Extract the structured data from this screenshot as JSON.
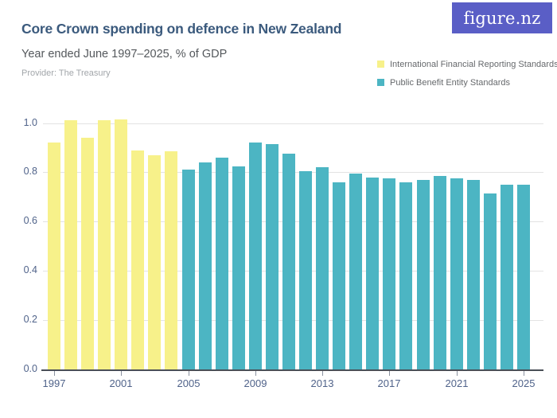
{
  "header": {
    "title": "Core Crown spending on defence in New Zealand",
    "subtitle": "Year ended June 1997–2025, % of GDP",
    "provider": "Provider: The Treasury"
  },
  "logo": {
    "text": "figure.nz"
  },
  "legend": {
    "items": [
      {
        "label": "International Financial Reporting Standards",
        "color": "#f7f18a"
      },
      {
        "label": "Public Benefit Entity Standards",
        "color": "#4cb5c3"
      }
    ]
  },
  "colors": {
    "title_text": "#3b5a7d",
    "subtitle_text": "#54585c",
    "provider_text": "#a2a6aa",
    "legend_text": "#66696c",
    "axis_label": "#50638a",
    "axis_line": "#4a4f57",
    "gridline": "#e3e3e3",
    "ifrs_yellow": "#f7f18a",
    "pbe_teal": "#4cb5c3",
    "logo_background": "#5a5ec6",
    "background": "#ffffff"
  },
  "chart_data": {
    "type": "bar",
    "title": "Core Crown spending on defence in New Zealand",
    "subtitle": "Year ended June 1997–2025, % of GDP",
    "unit": "% of GDP",
    "categories": [
      1997,
      1998,
      1999,
      2000,
      2001,
      2002,
      2003,
      2004,
      2005,
      2006,
      2007,
      2008,
      2009,
      2010,
      2011,
      2012,
      2013,
      2014,
      2015,
      2016,
      2017,
      2018,
      2019,
      2020,
      2021,
      2022,
      2023,
      2024,
      2025
    ],
    "series": [
      {
        "name": "International Financial Reporting Standards",
        "color": "#f7f18a",
        "years": [
          1997,
          1998,
          1999,
          2000,
          2001,
          2002,
          2003,
          2004
        ],
        "values": [
          0.92,
          1.01,
          0.94,
          1.01,
          1.015,
          0.89,
          0.87,
          0.885
        ]
      },
      {
        "name": "Public Benefit Entity Standards",
        "color": "#4cb5c3",
        "years": [
          2005,
          2006,
          2007,
          2008,
          2009,
          2010,
          2011,
          2012,
          2013,
          2014,
          2015,
          2016,
          2017,
          2018,
          2019,
          2020,
          2021,
          2022,
          2023,
          2024,
          2025
        ],
        "values": [
          0.81,
          0.84,
          0.86,
          0.825,
          0.92,
          0.915,
          0.875,
          0.805,
          0.82,
          0.76,
          0.795,
          0.78,
          0.775,
          0.76,
          0.77,
          0.785,
          0.775,
          0.77,
          0.715,
          0.75,
          0.75
        ]
      }
    ],
    "ylim": [
      0,
      1.05
    ],
    "yticks": [
      "0.0",
      "0.2",
      "0.4",
      "0.6",
      "0.8",
      "1.0"
    ],
    "xticks": [
      "1997",
      "2001",
      "2005",
      "2009",
      "2013",
      "2017",
      "2021",
      "2025"
    ],
    "grid": "horizontal",
    "legend_position": "top-right"
  }
}
